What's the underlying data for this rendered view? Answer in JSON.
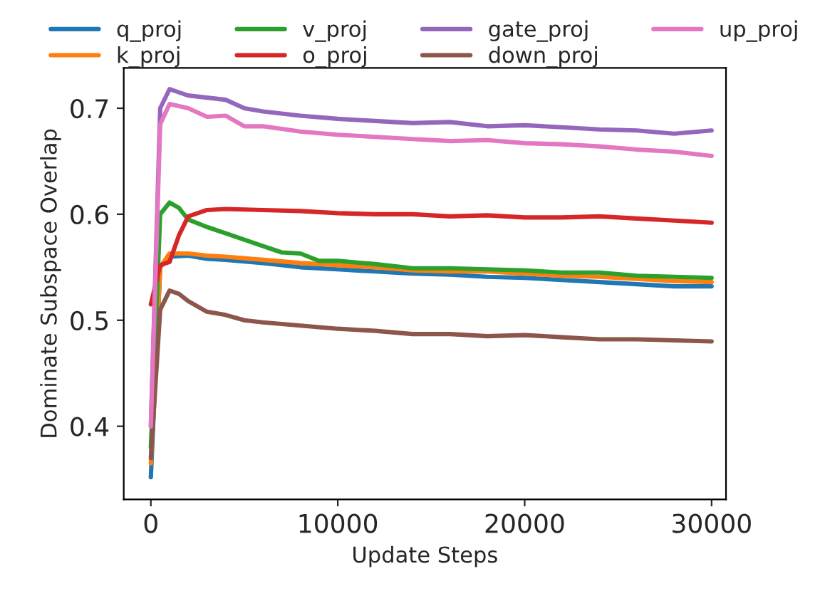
{
  "chart_data": {
    "type": "line",
    "xlabel": "Update Steps",
    "ylabel": "Dominate Subspace Overlap",
    "xlim": [
      -1450,
      30770
    ],
    "ylim": [
      0.331,
      0.738
    ],
    "xticks": [
      0,
      10000,
      20000,
      30000
    ],
    "yticks": [
      0.4,
      0.5,
      0.6,
      0.7
    ],
    "grid": false,
    "legend": "top",
    "marker": "none",
    "line_style": "solid",
    "series": [
      {
        "name": "q_proj",
        "color": "#1f77b4",
        "x": [
          0,
          500,
          1000,
          2000,
          3000,
          4000,
          6000,
          8000,
          10000,
          12000,
          14000,
          16000,
          18000,
          20000,
          22000,
          24000,
          26000,
          28000,
          30000
        ],
        "values": [
          0.352,
          0.55,
          0.56,
          0.561,
          0.558,
          0.557,
          0.554,
          0.55,
          0.548,
          0.546,
          0.544,
          0.543,
          0.541,
          0.54,
          0.538,
          0.536,
          0.534,
          0.532,
          0.532
        ]
      },
      {
        "name": "k_proj",
        "color": "#ff7f0e",
        "x": [
          0,
          500,
          1000,
          2000,
          3000,
          4000,
          6000,
          8000,
          10000,
          12000,
          14000,
          16000,
          18000,
          20000,
          22000,
          24000,
          26000,
          28000,
          30000
        ],
        "values": [
          0.365,
          0.55,
          0.563,
          0.563,
          0.561,
          0.56,
          0.557,
          0.554,
          0.552,
          0.55,
          0.547,
          0.546,
          0.546,
          0.544,
          0.542,
          0.541,
          0.539,
          0.537,
          0.536
        ]
      },
      {
        "name": "v_proj",
        "color": "#2ca02c",
        "x": [
          0,
          500,
          1000,
          1500,
          2000,
          3000,
          4000,
          5000,
          6000,
          7000,
          8000,
          9000,
          10000,
          12000,
          14000,
          16000,
          18000,
          20000,
          22000,
          24000,
          26000,
          28000,
          30000
        ],
        "values": [
          0.38,
          0.6,
          0.611,
          0.606,
          0.595,
          0.588,
          0.582,
          0.576,
          0.57,
          0.564,
          0.563,
          0.556,
          0.556,
          0.553,
          0.549,
          0.549,
          0.548,
          0.547,
          0.545,
          0.545,
          0.542,
          0.541,
          0.54
        ]
      },
      {
        "name": "o_proj",
        "color": "#d62728",
        "x": [
          0,
          500,
          1000,
          1500,
          2000,
          3000,
          4000,
          6000,
          8000,
          10000,
          12000,
          14000,
          16000,
          18000,
          20000,
          22000,
          24000,
          26000,
          28000,
          30000
        ],
        "values": [
          0.515,
          0.552,
          0.555,
          0.58,
          0.598,
          0.604,
          0.605,
          0.604,
          0.603,
          0.601,
          0.6,
          0.6,
          0.598,
          0.599,
          0.597,
          0.597,
          0.598,
          0.596,
          0.594,
          0.592
        ]
      },
      {
        "name": "gate_proj",
        "color": "#9467bd",
        "x": [
          0,
          500,
          1000,
          2000,
          3000,
          4000,
          5000,
          6000,
          8000,
          10000,
          12000,
          14000,
          16000,
          18000,
          20000,
          22000,
          24000,
          26000,
          28000,
          30000
        ],
        "values": [
          0.4,
          0.7,
          0.718,
          0.712,
          0.71,
          0.708,
          0.7,
          0.697,
          0.693,
          0.69,
          0.688,
          0.686,
          0.687,
          0.683,
          0.684,
          0.682,
          0.68,
          0.679,
          0.676,
          0.679
        ]
      },
      {
        "name": "down_proj",
        "color": "#8c564b",
        "x": [
          0,
          500,
          1000,
          1500,
          2000,
          3000,
          4000,
          5000,
          6000,
          8000,
          10000,
          12000,
          14000,
          16000,
          18000,
          20000,
          22000,
          24000,
          26000,
          28000,
          30000
        ],
        "values": [
          0.37,
          0.51,
          0.528,
          0.525,
          0.518,
          0.508,
          0.505,
          0.5,
          0.498,
          0.495,
          0.492,
          0.49,
          0.487,
          0.487,
          0.485,
          0.486,
          0.484,
          0.482,
          0.482,
          0.481,
          0.48
        ]
      },
      {
        "name": "up_proj",
        "color": "#e377c2",
        "x": [
          0,
          500,
          1000,
          2000,
          3000,
          4000,
          5000,
          6000,
          8000,
          10000,
          12000,
          14000,
          16000,
          18000,
          20000,
          22000,
          24000,
          26000,
          28000,
          30000
        ],
        "values": [
          0.4,
          0.685,
          0.704,
          0.7,
          0.692,
          0.693,
          0.683,
          0.683,
          0.678,
          0.675,
          0.673,
          0.671,
          0.669,
          0.67,
          0.667,
          0.666,
          0.664,
          0.661,
          0.659,
          0.655
        ]
      }
    ]
  }
}
